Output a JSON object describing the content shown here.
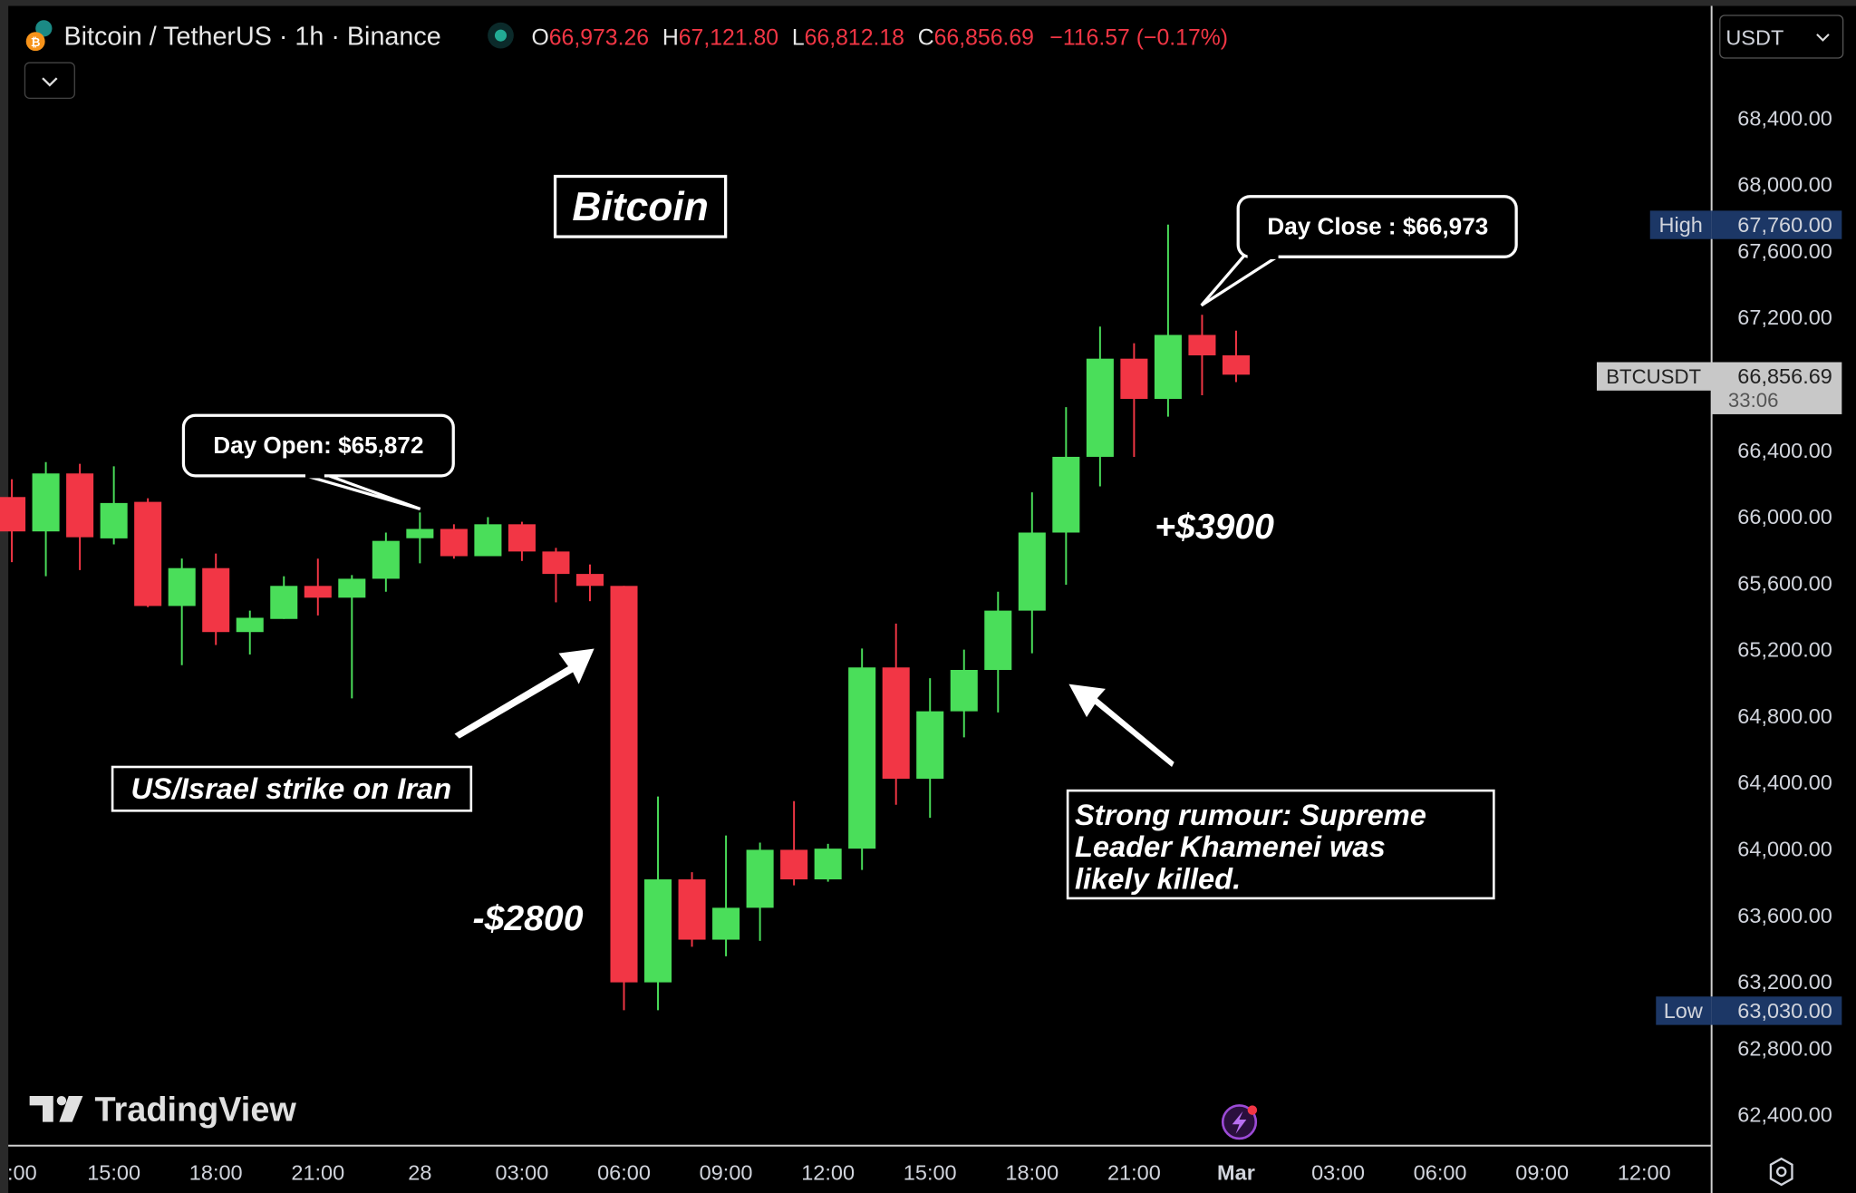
{
  "header": {
    "symbol_title": "Bitcoin / TetherUS · 1h · Binance",
    "o_label": "O",
    "o_value": "66,973.26",
    "h_label": "H",
    "h_value": "67,121.80",
    "l_label": "L",
    "l_value": "66,812.18",
    "c_label": "C",
    "c_value": "66,856.69",
    "change": "−116.57 (−0.17%)",
    "currency": "USDT"
  },
  "price_axis": {
    "ticks": [
      "68,400.00",
      "68,000.00",
      "67,600.00",
      "67,200.00",
      "66,400.00",
      "66,000.00",
      "65,600.00",
      "65,200.00",
      "64,800.00",
      "64,400.00",
      "64,000.00",
      "63,600.00",
      "63,200.00",
      "62,800.00",
      "62,400.00"
    ],
    "high_label": "High",
    "high_value": "67,760.00",
    "low_label": "Low",
    "low_value": "63,030.00",
    "symbol_label": "BTCUSDT",
    "last_price": "66,856.69",
    "countdown": "33:06"
  },
  "time_axis": {
    "labels": [
      ":00",
      "15:00",
      "18:00",
      "21:00",
      "28",
      "03:00",
      "06:00",
      "09:00",
      "12:00",
      "15:00",
      "18:00",
      "21:00",
      "Mar",
      "03:00",
      "06:00",
      "09:00",
      "12:00"
    ]
  },
  "branding": {
    "logo_text": "TradingView"
  },
  "annotations": {
    "title": "Bitcoin",
    "day_open": "Day Open: $65,872",
    "day_close": "Day Close : $66,973",
    "strike": "US/Israel strike on Iran",
    "drop": "-$2800",
    "rise": "+$3900",
    "rumour_lines": [
      "Strong rumour: Supreme",
      "Leader Khamenei was",
      "likely killed."
    ]
  },
  "colors": {
    "up": "#4ade5a",
    "down": "#f23645",
    "background": "#000000",
    "high_low_badge": "#1c3766"
  },
  "chart_data": {
    "type": "candlestick",
    "title": "",
    "interval": "1h",
    "ylim": [
      62400,
      68400
    ],
    "grid": false,
    "times": [
      "27 12:00",
      "27 13:00",
      "27 14:00",
      "27 15:00",
      "27 16:00",
      "27 17:00",
      "27 18:00",
      "27 19:00",
      "27 20:00",
      "27 21:00",
      "27 22:00",
      "27 23:00",
      "28 00:00",
      "28 01:00",
      "28 02:00",
      "28 03:00",
      "28 04:00",
      "28 05:00",
      "28 06:00",
      "28 07:00",
      "28 08:00",
      "28 09:00",
      "28 10:00",
      "28 11:00",
      "28 12:00",
      "28 13:00",
      "28 14:00",
      "28 15:00",
      "28 16:00",
      "28 17:00",
      "28 18:00",
      "28 19:00",
      "28 20:00",
      "28 21:00",
      "28 22:00",
      "28 23:00",
      "Mar 1 00:00"
    ],
    "ohlc": [
      [
        66120,
        66227,
        65728,
        65913
      ],
      [
        65913,
        66330,
        65643,
        66262
      ],
      [
        66262,
        66320,
        65680,
        65878
      ],
      [
        65871,
        66305,
        65835,
        66084
      ],
      [
        66091,
        66113,
        65457,
        65464
      ],
      [
        65464,
        65750,
        65108,
        65692
      ],
      [
        65692,
        65780,
        65229,
        65307
      ],
      [
        65307,
        65436,
        65172,
        65393
      ],
      [
        65386,
        65643,
        65386,
        65585
      ],
      [
        65585,
        65749,
        65407,
        65514
      ],
      [
        65514,
        65650,
        64908,
        65628
      ],
      [
        65628,
        65906,
        65550,
        65856
      ],
      [
        65872,
        66027,
        65721,
        65928
      ],
      [
        65928,
        65956,
        65749,
        65764
      ],
      [
        65764,
        65999,
        65764,
        65956
      ],
      [
        65956,
        65971,
        65735,
        65792
      ],
      [
        65792,
        65814,
        65486,
        65657
      ],
      [
        65657,
        65714,
        65493,
        65585
      ],
      [
        65585,
        65585,
        63030,
        63198
      ],
      [
        63198,
        64317,
        63030,
        63818
      ],
      [
        63818,
        63861,
        63412,
        63455
      ],
      [
        63455,
        64082,
        63355,
        63647
      ],
      [
        63647,
        64039,
        63448,
        63996
      ],
      [
        63996,
        64289,
        63782,
        63818
      ],
      [
        63818,
        64032,
        63804,
        64003
      ],
      [
        64003,
        65208,
        63875,
        65094
      ],
      [
        65094,
        65358,
        64267,
        64424
      ],
      [
        64424,
        65029,
        64189,
        64830
      ],
      [
        64830,
        65201,
        64673,
        65079
      ],
      [
        65079,
        65550,
        64823,
        65436
      ],
      [
        65436,
        66148,
        65179,
        65906
      ],
      [
        65906,
        66661,
        65592,
        66362
      ],
      [
        66362,
        67146,
        66184,
        66953
      ],
      [
        66953,
        67046,
        66362,
        66711
      ],
      [
        66711,
        67760,
        66604,
        67096
      ],
      [
        67096,
        67217,
        66733,
        66973
      ],
      [
        66973.26,
        67121.8,
        66812.18,
        66856.69
      ]
    ]
  }
}
